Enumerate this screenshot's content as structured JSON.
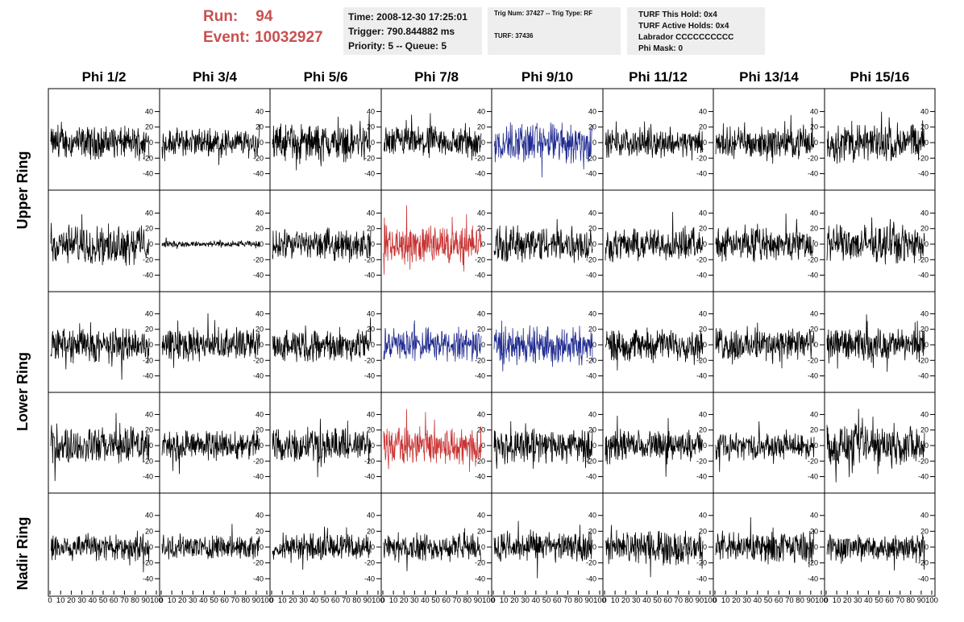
{
  "header": {
    "run_label": "Run:",
    "run_value": "94",
    "event_label": "Event:",
    "event_value": "10032927",
    "time": "Time: 2008-12-30 17:25:01",
    "trigger": "Trigger: 790.844882 ms",
    "priority": "Priority: 5 -- Queue: 5",
    "trig_num": "Trig Num: 37427 -- Trig Type: RF",
    "turf": "TURF: 37436",
    "turf_this_hold": "TURF This Hold: 0x4",
    "turf_active_holds": "TURF Active Holds: 0x4",
    "labrador": "Labrador CCCCCCCCCC",
    "phi_mask": "Phi Mask: 0"
  },
  "columns": [
    "Phi 1/2",
    "Phi 3/4",
    "Phi 5/6",
    "Phi 7/8",
    "Phi 9/10",
    "Phi 11/12",
    "Phi 13/14",
    "Phi 15/16"
  ],
  "rows": [
    "Upper Ring",
    "Lower Ring",
    "Nadir Ring"
  ],
  "colors": {
    "normal": "#000000",
    "blue": "#1f2a8f",
    "red": "#c83232",
    "header_red": "#c9504f",
    "box_bg": "#eeeeee"
  },
  "chart_data": {
    "type": "line",
    "x_ticks": [
      "0",
      "10",
      "20",
      "30",
      "40",
      "50",
      "60",
      "70",
      "80",
      "90",
      "100"
    ],
    "y_ticks": [
      "-40",
      "-20",
      "0",
      "20",
      "40"
    ],
    "xlim": [
      0,
      100
    ],
    "ylim": [
      -55,
      55
    ],
    "samples": 260,
    "panel_rows": 5,
    "panels": [
      [
        {
          "amp": 15,
          "color": "normal"
        },
        {
          "amp": 13,
          "color": "normal"
        },
        {
          "amp": 17,
          "color": "normal"
        },
        {
          "amp": 15,
          "color": "normal"
        },
        {
          "amp": 19,
          "color": "blue"
        },
        {
          "amp": 13,
          "color": "normal"
        },
        {
          "amp": 14,
          "color": "normal"
        },
        {
          "amp": 18,
          "color": "normal"
        }
      ],
      [
        {
          "amp": 18,
          "color": "normal"
        },
        {
          "amp": 3,
          "color": "normal"
        },
        {
          "amp": 14,
          "color": "normal"
        },
        {
          "amp": 18,
          "color": "red"
        },
        {
          "amp": 17,
          "color": "normal"
        },
        {
          "amp": 15,
          "color": "normal"
        },
        {
          "amp": 15,
          "color": "normal"
        },
        {
          "amp": 17,
          "color": "normal"
        }
      ],
      [
        {
          "amp": 16,
          "color": "normal"
        },
        {
          "amp": 15,
          "color": "normal"
        },
        {
          "amp": 15,
          "color": "normal"
        },
        {
          "amp": 15,
          "color": "blue"
        },
        {
          "amp": 18,
          "color": "blue"
        },
        {
          "amp": 15,
          "color": "normal"
        },
        {
          "amp": 16,
          "color": "normal"
        },
        {
          "amp": 15,
          "color": "normal"
        }
      ],
      [
        {
          "amp": 17,
          "color": "normal"
        },
        {
          "amp": 14,
          "color": "normal"
        },
        {
          "amp": 16,
          "color": "normal"
        },
        {
          "amp": 18,
          "color": "red"
        },
        {
          "amp": 16,
          "color": "normal"
        },
        {
          "amp": 14,
          "color": "normal"
        },
        {
          "amp": 12,
          "color": "normal"
        },
        {
          "amp": 19,
          "color": "normal"
        }
      ],
      [
        {
          "amp": 13,
          "color": "normal"
        },
        {
          "amp": 11,
          "color": "normal"
        },
        {
          "amp": 12,
          "color": "normal"
        },
        {
          "amp": 12,
          "color": "normal"
        },
        {
          "amp": 14,
          "color": "normal"
        },
        {
          "amp": 15,
          "color": "normal"
        },
        {
          "amp": 14,
          "color": "normal"
        },
        {
          "amp": 13,
          "color": "normal"
        }
      ]
    ]
  }
}
